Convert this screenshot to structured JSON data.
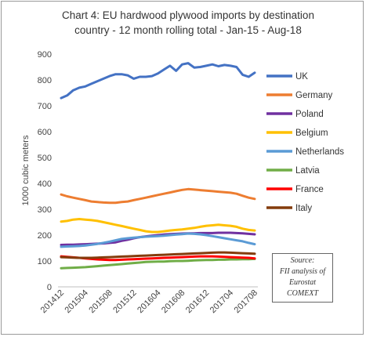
{
  "chart_data": {
    "type": "line",
    "title_line1": "Chart 4: EU hardwood plywood imports by destination",
    "title_line2": "country - 12 month rolling total - Jan-15 - Aug-18",
    "ylabel": "1000 cubic meters",
    "ylim": [
      0,
      900
    ],
    "yticks": [
      "0",
      "100",
      "200",
      "300",
      "400",
      "500",
      "600",
      "700",
      "800",
      "900"
    ],
    "x_tick_labels": [
      "201412",
      "201504",
      "201508",
      "201512",
      "201604",
      "201608",
      "201612",
      "201704",
      "201708"
    ],
    "x_tick_index": [
      0,
      4,
      8,
      12,
      16,
      20,
      24,
      28,
      32
    ],
    "legend_position": "right",
    "grid": false,
    "series": [
      {
        "name": "UK",
        "color": "#4472C4",
        "values": [
          730,
          740,
          760,
          770,
          775,
          785,
          795,
          805,
          815,
          822,
          822,
          818,
          805,
          812,
          812,
          815,
          825,
          840,
          855,
          835,
          860,
          865,
          848,
          850,
          855,
          860,
          853,
          858,
          855,
          850,
          820,
          812,
          828
        ]
      },
      {
        "name": "Germany",
        "color": "#ED7D31",
        "values": [
          357,
          350,
          345,
          340,
          335,
          330,
          328,
          326,
          325,
          325,
          328,
          330,
          335,
          340,
          345,
          350,
          355,
          360,
          365,
          370,
          375,
          378,
          376,
          374,
          372,
          370,
          368,
          366,
          364,
          360,
          352,
          345,
          340
        ]
      },
      {
        "name": "Poland",
        "color": "#7030A0",
        "values": [
          162,
          163,
          163,
          164,
          165,
          166,
          167,
          168,
          170,
          172,
          178,
          182,
          188,
          192,
          195,
          198,
          200,
          202,
          204,
          205,
          206,
          207,
          207,
          208,
          208,
          208,
          209,
          209,
          209,
          208,
          207,
          205,
          203
        ]
      },
      {
        "name": "Belgium",
        "color": "#FFC000",
        "values": [
          252,
          255,
          260,
          262,
          260,
          258,
          255,
          250,
          245,
          240,
          235,
          230,
          225,
          220,
          215,
          212,
          212,
          215,
          218,
          220,
          222,
          225,
          228,
          232,
          236,
          238,
          240,
          238,
          236,
          232,
          225,
          220,
          218
        ]
      },
      {
        "name": "Netherlands",
        "color": "#5B9BD5",
        "values": [
          155,
          156,
          157,
          158,
          160,
          163,
          166,
          170,
          175,
          180,
          185,
          188,
          190,
          192,
          194,
          195,
          196,
          198,
          200,
          202,
          204,
          206,
          205,
          203,
          200,
          196,
          192,
          188,
          184,
          180,
          176,
          170,
          165
        ]
      },
      {
        "name": "Latvia",
        "color": "#70AD47",
        "values": [
          72,
          73,
          74,
          75,
          76,
          78,
          80,
          82,
          84,
          86,
          88,
          90,
          92,
          94,
          96,
          97,
          98,
          98,
          99,
          100,
          100,
          101,
          102,
          103,
          104,
          104,
          105,
          105,
          106,
          106,
          107,
          107,
          108
        ]
      },
      {
        "name": "France",
        "color": "#FF0000",
        "values": [
          118,
          116,
          114,
          112,
          110,
          108,
          106,
          105,
          104,
          104,
          105,
          106,
          107,
          108,
          109,
          110,
          111,
          112,
          113,
          114,
          115,
          116,
          117,
          118,
          118,
          118,
          117,
          116,
          115,
          114,
          113,
          112,
          110
        ]
      },
      {
        "name": "Italy",
        "color": "#843C0C",
        "values": [
          115,
          114,
          113,
          112,
          112,
          112,
          113,
          114,
          115,
          116,
          117,
          118,
          119,
          120,
          121,
          122,
          123,
          124,
          125,
          126,
          127,
          128,
          129,
          130,
          131,
          132,
          133,
          133,
          132,
          131,
          130,
          129,
          128
        ]
      }
    ],
    "source_lines": [
      "Source:",
      "FII analysis of",
      "Eurostat",
      "COMEXT"
    ]
  }
}
